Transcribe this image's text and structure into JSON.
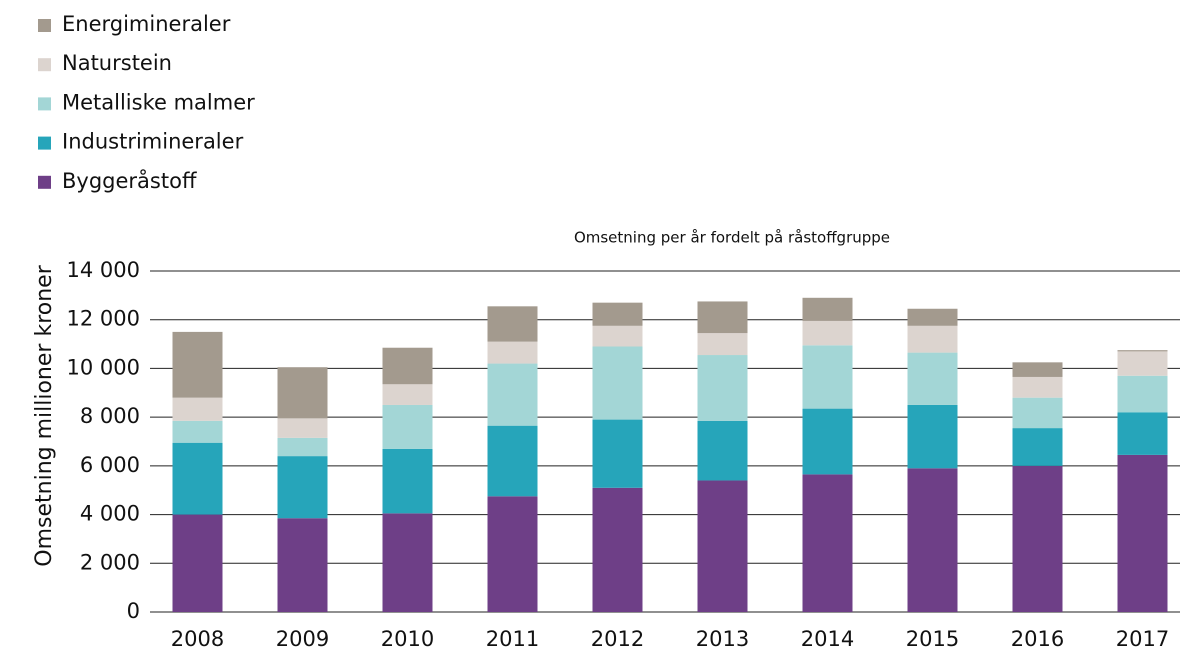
{
  "chart_data": {
    "type": "stacked_bar",
    "title": "Omsetning per år fordelt på råstoffgruppe",
    "y_label": "Omsetning millioner kroner",
    "categories": [
      "2008",
      "2009",
      "2010",
      "2011",
      "2012",
      "2013",
      "2014",
      "2015",
      "2016",
      "2017"
    ],
    "series": [
      {
        "name": "Byggeråstoff",
        "color": "#6e3f87",
        "values": [
          4000,
          3850,
          4050,
          4750,
          5100,
          5400,
          5650,
          5900,
          6000,
          6450
        ]
      },
      {
        "name": "Industrimineraler",
        "color": "#26a5ba",
        "values": [
          2950,
          2550,
          2650,
          2900,
          2800,
          2450,
          2700,
          2600,
          1550,
          1750
        ]
      },
      {
        "name": "Metalliske malmer",
        "color": "#a3d6d6",
        "values": [
          900,
          750,
          1800,
          2550,
          3000,
          2700,
          2600,
          2150,
          1250,
          1500
        ]
      },
      {
        "name": "Naturstein",
        "color": "#dcd4cf",
        "values": [
          950,
          800,
          850,
          900,
          850,
          900,
          1000,
          1100,
          850,
          1000
        ]
      },
      {
        "name": "Energimineraler",
        "color": "#a39a8e",
        "values": [
          2700,
          2100,
          1500,
          1450,
          950,
          1300,
          950,
          700,
          600,
          50
        ]
      }
    ],
    "ylim": [
      0,
      14000
    ],
    "yticks": [
      0,
      {
        "value": 2000,
        "label": "2 000"
      },
      {
        "value": 4000,
        "label": "4 000"
      },
      {
        "value": 6000,
        "label": "6 000"
      },
      {
        "value": 8000,
        "label": "8 000"
      },
      {
        "value": 10000,
        "label": "10 000"
      },
      {
        "value": 12000,
        "label": "12 000"
      },
      {
        "value": 14000,
        "label": "14 000"
      }
    ],
    "grid": true,
    "legend": "top-left"
  }
}
